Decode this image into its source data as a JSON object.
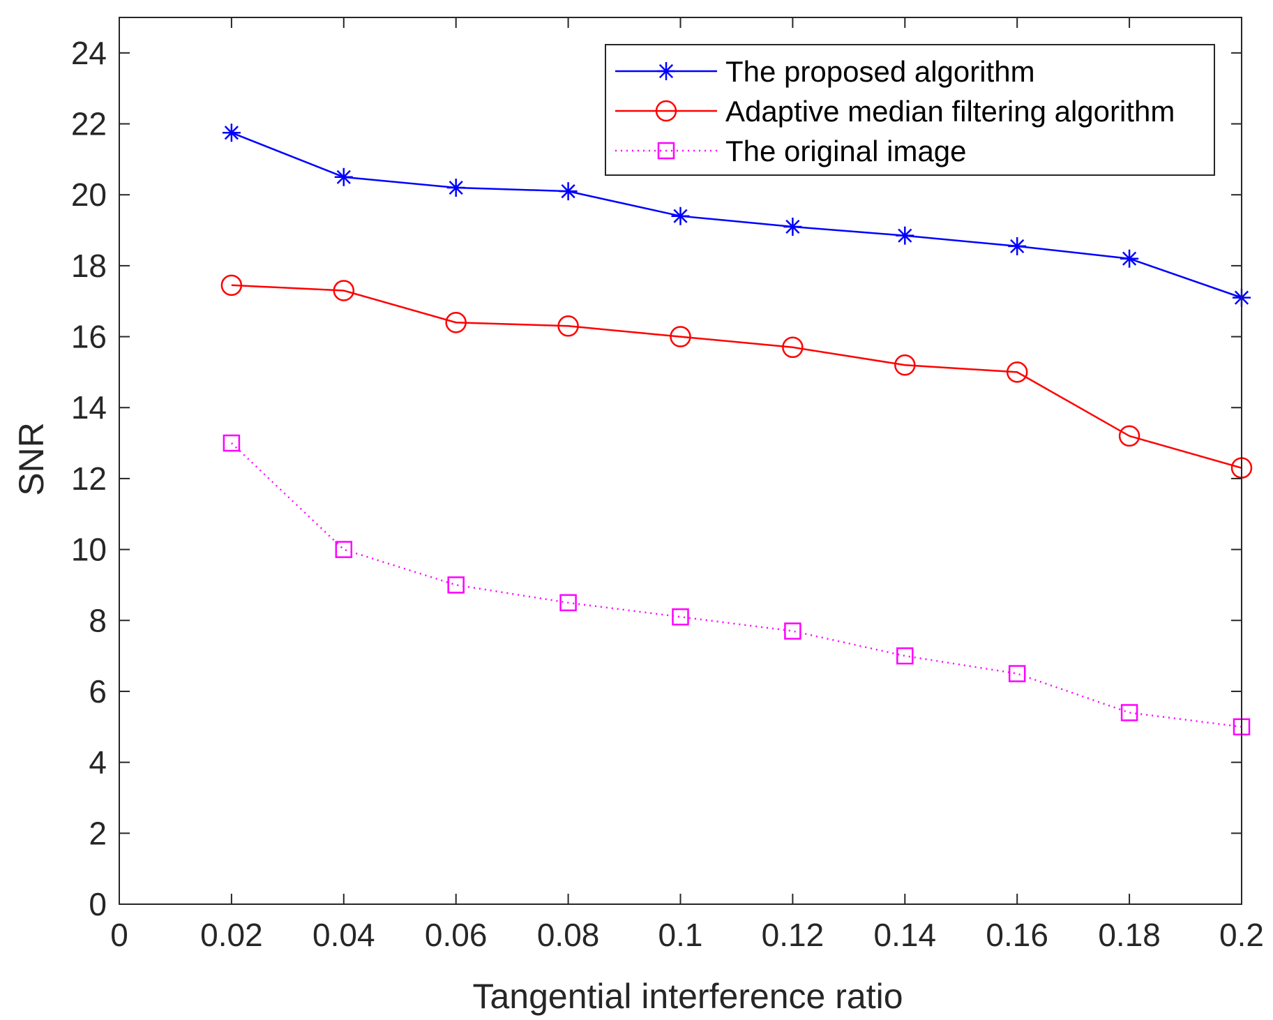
{
  "chart_data": {
    "type": "line",
    "title": "",
    "xlabel": "Tangential interference ratio",
    "ylabel": "SNR",
    "xlim": [
      0,
      0.2
    ],
    "ylim": [
      0,
      25
    ],
    "xticks": [
      0,
      0.02,
      0.04,
      0.06,
      0.08,
      0.1,
      0.12,
      0.14,
      0.16,
      0.18,
      0.2
    ],
    "xtick_labels": [
      "0",
      "0.02",
      "0.04",
      "0.06",
      "0.08",
      "0.1",
      "0.12",
      "0.14",
      "0.16",
      "0.18",
      "0.2"
    ],
    "yticks": [
      0,
      2,
      4,
      6,
      8,
      10,
      12,
      14,
      16,
      18,
      20,
      22,
      24
    ],
    "ytick_labels": [
      "0",
      "2",
      "4",
      "6",
      "8",
      "10",
      "12",
      "14",
      "16",
      "18",
      "20",
      "22",
      "24"
    ],
    "grid": false,
    "legend_position": "top-right",
    "x": [
      0.02,
      0.04,
      0.06,
      0.08,
      0.1,
      0.12,
      0.14,
      0.16,
      0.18,
      0.2
    ],
    "series": [
      {
        "name": "The proposed algorithm",
        "color": "#0000FF",
        "marker": "asterisk",
        "line_style": "solid",
        "values": [
          21.75,
          20.5,
          20.2,
          20.1,
          19.4,
          19.1,
          18.85,
          18.55,
          18.2,
          17.1
        ]
      },
      {
        "name": "Adaptive median filtering algorithm",
        "color": "#FF0000",
        "marker": "circle",
        "line_style": "solid",
        "values": [
          17.45,
          17.3,
          16.4,
          16.3,
          16.0,
          15.7,
          15.2,
          15.0,
          13.2,
          12.3
        ]
      },
      {
        "name": "The original image",
        "color": "#FF00FF",
        "marker": "square",
        "line_style": "dotted",
        "values": [
          13.0,
          10.0,
          9.0,
          8.5,
          8.1,
          7.7,
          7.0,
          6.5,
          5.4,
          5.0
        ]
      }
    ]
  }
}
